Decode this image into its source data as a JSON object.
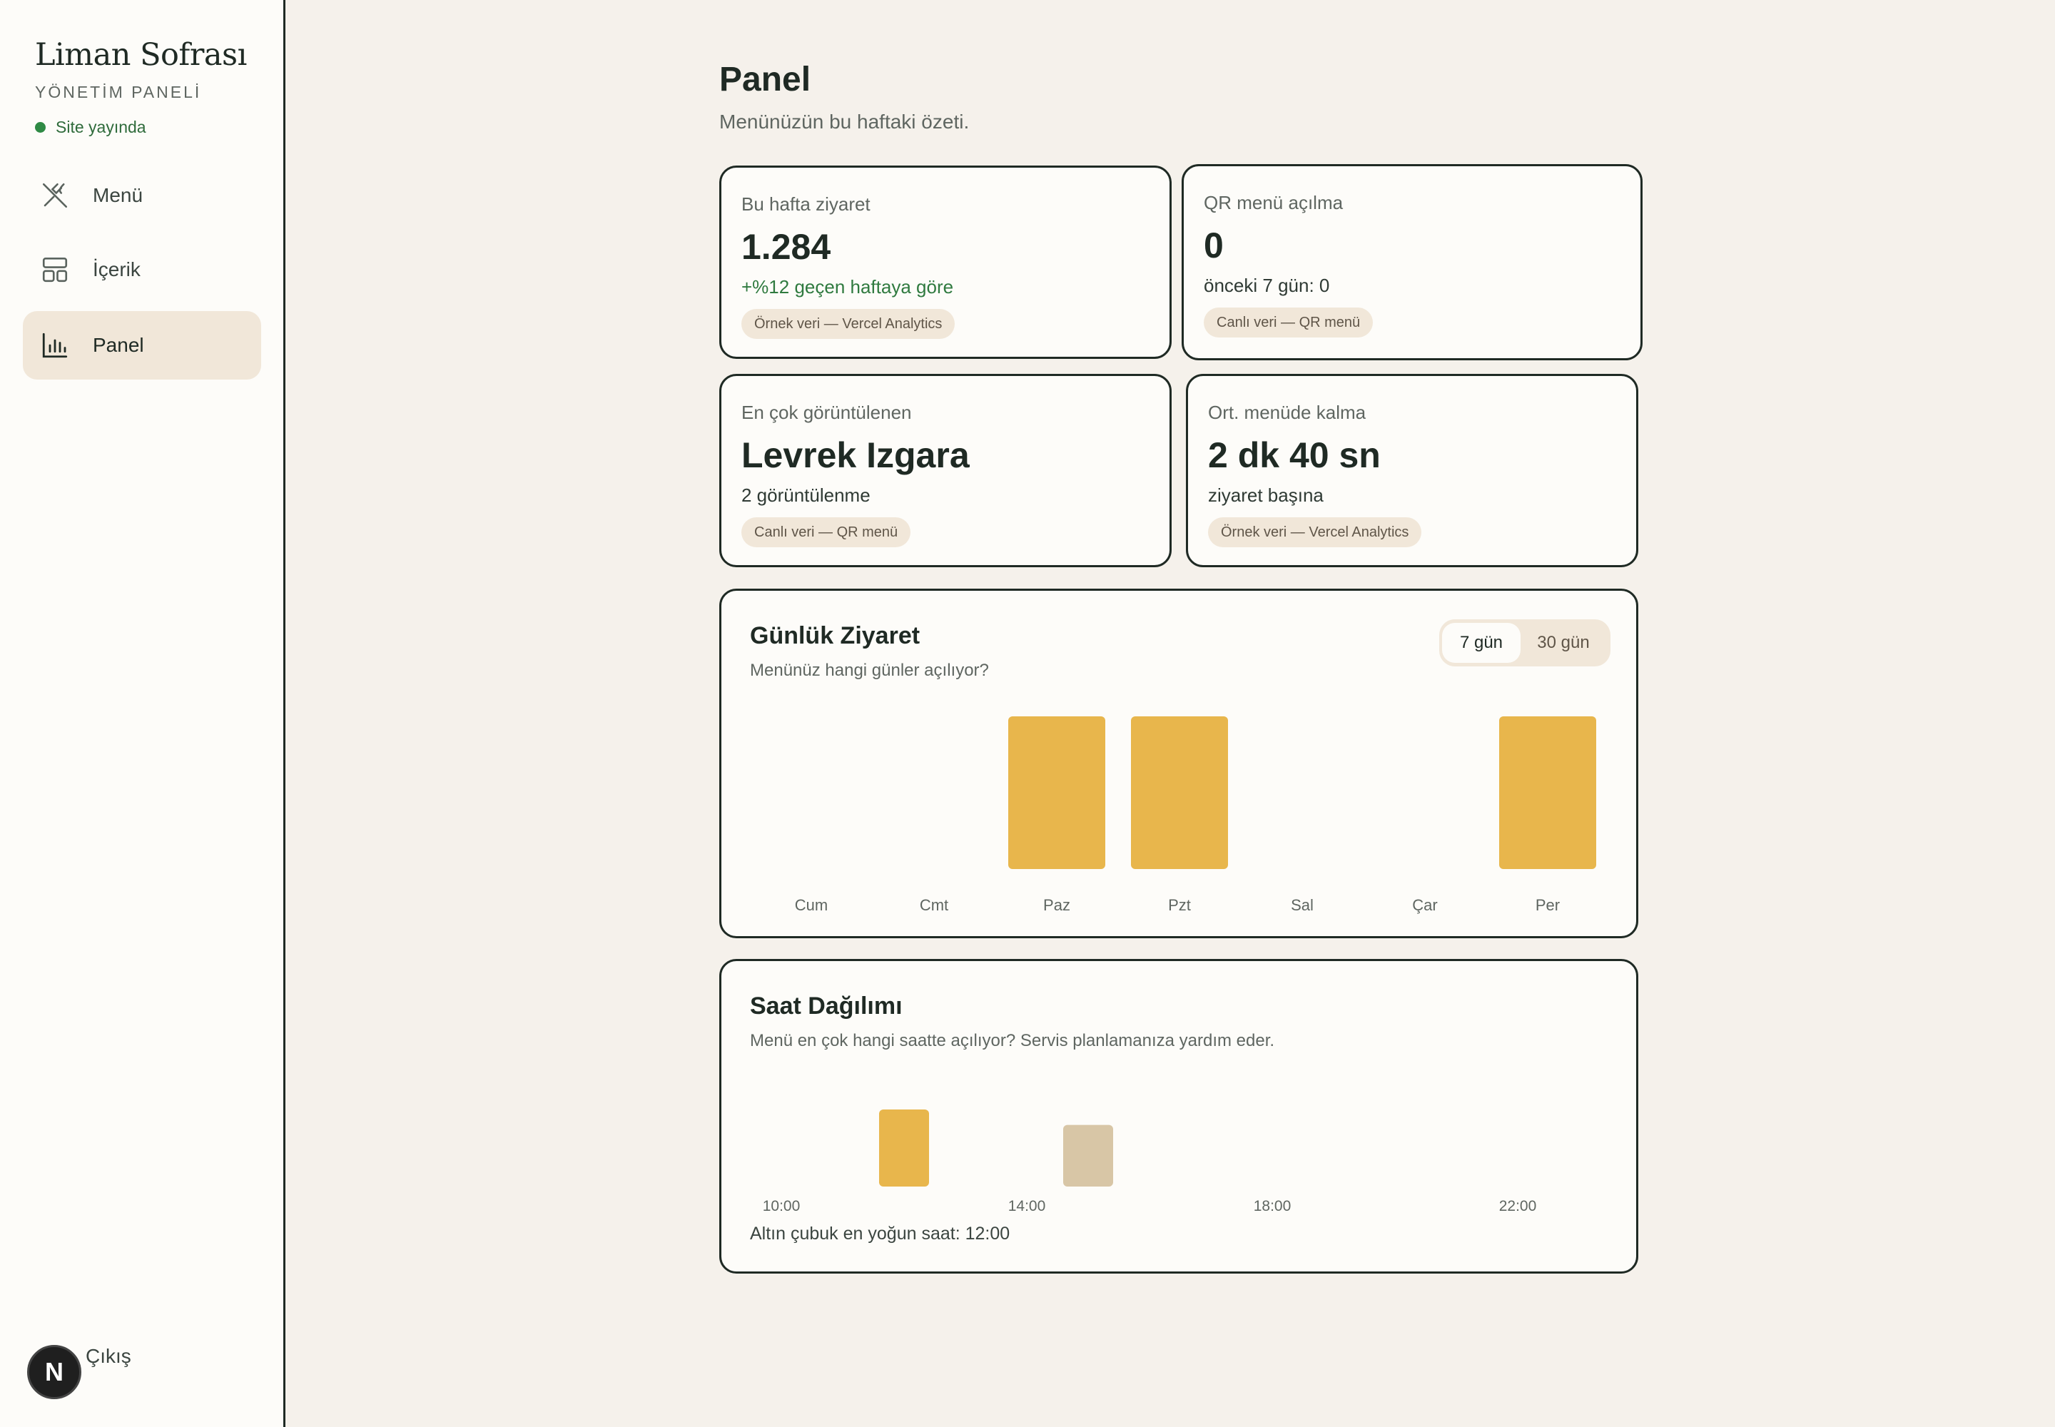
{
  "sidebar": {
    "brand": "Liman Sofrası",
    "brand_sub": "YÖNETİM PANELİ",
    "status": "Site yayında",
    "items": [
      {
        "label": "Menü",
        "icon": "utensils-icon"
      },
      {
        "label": "İçerik",
        "icon": "layout-icon"
      },
      {
        "label": "Panel",
        "icon": "bar-chart-icon"
      }
    ],
    "logout": "Çıkış",
    "badge": "N"
  },
  "header": {
    "title": "Panel",
    "subtitle": "Menünüzün bu haftaki özeti."
  },
  "stats": [
    {
      "label": "Bu hafta ziyaret",
      "value": "1.284",
      "note": "+%12 geçen haftaya göre",
      "tag": "Örnek veri — Vercel Analytics"
    },
    {
      "label": "QR menü açılma",
      "value": "0",
      "note": "önceki 7 gün: 0",
      "tag": "Canlı veri — QR menü"
    },
    {
      "label": "En çok görüntülenen",
      "value": "Levrek Izgara",
      "note": "2 görüntülenme",
      "tag": "Canlı veri — QR menü"
    },
    {
      "label": "Ort. menüde kalma",
      "value": "2 dk 40 sn",
      "note": "ziyaret başına",
      "tag": "Örnek veri — Vercel Analytics"
    }
  ],
  "daily": {
    "title": "Günlük Ziyaret",
    "subtitle": "Menünüz hangi günler açılıyor?",
    "toggle": [
      "7 gün",
      "30 gün"
    ],
    "selected": "7 gün"
  },
  "hourly": {
    "title": "Saat Dağılımı",
    "subtitle": "Menü en çok hangi saatte açılıyor? Servis planlamanıza yardım eder.",
    "footnote": "Altın çubuk en yoğun saat: 12:00"
  },
  "colors": {
    "accent": "#e8b64c",
    "muted_bar": "#d8c6a6",
    "ink": "#1f2a24",
    "live_green": "#2f8a45"
  },
  "chart_data": [
    {
      "type": "bar",
      "title": "Günlük Ziyaret",
      "categories": [
        "Cum",
        "Cmt",
        "Paz",
        "Pzt",
        "Sal",
        "Çar",
        "Per"
      ],
      "values": [
        0,
        0,
        1,
        1,
        0,
        0,
        1
      ],
      "ylim": [
        0,
        1
      ],
      "grid": false
    },
    {
      "type": "bar",
      "title": "Saat Dağılımı",
      "categories": [
        "10:00",
        "11:00",
        "12:00",
        "13:00",
        "14:00",
        "15:00",
        "16:00",
        "17:00",
        "18:00",
        "19:00",
        "20:00",
        "21:00",
        "22:00",
        "23:00"
      ],
      "tick_labels": [
        "10:00",
        "14:00",
        "18:00",
        "22:00"
      ],
      "values": [
        0,
        0,
        1,
        0,
        0,
        0.8,
        0,
        0,
        0,
        0,
        0,
        0,
        0,
        0
      ],
      "peak": "12:00",
      "ylim": [
        0,
        1
      ],
      "grid": false
    }
  ]
}
